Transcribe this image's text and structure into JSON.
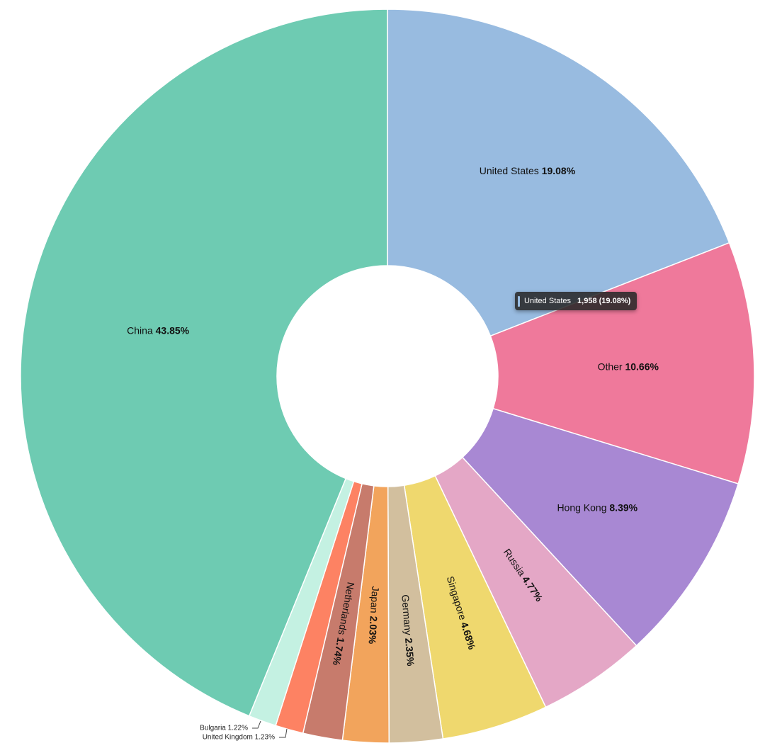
{
  "chart_data": {
    "type": "pie",
    "donut": true,
    "start_angle_deg": 0,
    "direction": "clockwise",
    "slices": [
      {
        "label": "United States",
        "percent": "19.08%",
        "value": 19.08,
        "color": "#98bbe0"
      },
      {
        "label": "Other",
        "percent": "10.66%",
        "value": 10.66,
        "color": "#ef799b"
      },
      {
        "label": "Hong Kong",
        "percent": "8.39%",
        "value": 8.39,
        "color": "#a888d3"
      },
      {
        "label": "Russia",
        "percent": "4.77%",
        "value": 4.77,
        "color": "#e4a7c6"
      },
      {
        "label": "Singapore",
        "percent": "4.68%",
        "value": 4.68,
        "color": "#efd86e"
      },
      {
        "label": "Germany",
        "percent": "2.35%",
        "value": 2.35,
        "color": "#d2bf9e"
      },
      {
        "label": "Japan",
        "percent": "2.03%",
        "value": 2.03,
        "color": "#f2a45c"
      },
      {
        "label": "Netherlands",
        "percent": "1.74%",
        "value": 1.74,
        "color": "#c77b6c"
      },
      {
        "label": "United Kingdom",
        "percent": "1.23%",
        "value": 1.23,
        "color": "#fd8263"
      },
      {
        "label": "Bulgaria",
        "percent": "1.22%",
        "value": 1.22,
        "color": "#c4f1e2"
      },
      {
        "label": "China",
        "percent": "43.85%",
        "value": 43.85,
        "color": "#6ecbb2"
      }
    ]
  },
  "tooltip": {
    "label": "United States",
    "value": "1,958 (19.08%)",
    "color": "#98bbe0"
  }
}
